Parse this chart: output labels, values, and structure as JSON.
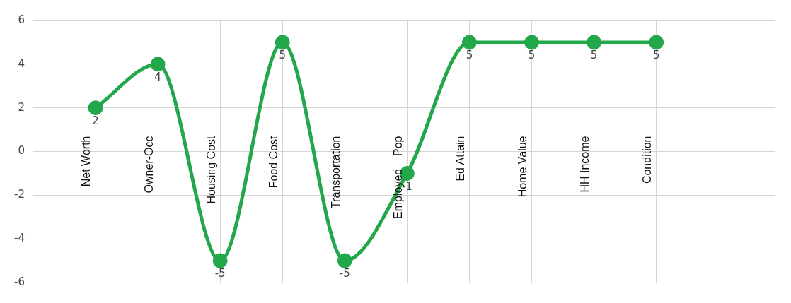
{
  "chart_data": {
    "type": "line",
    "categories": [
      "Net Worth",
      "Owner-Occ",
      "Housing Cost",
      "Food Cost",
      "Transportation",
      "Employed    Pop",
      "Ed Attain",
      "Home Value",
      "HH Income",
      "Condition"
    ],
    "series": [
      {
        "color": "#22a84a",
        "values": [
          2,
          4,
          -5,
          5,
          -5,
          -1,
          5,
          5,
          5,
          5
        ]
      }
    ],
    "ylim": [
      -6,
      6
    ],
    "yticks": [
      -6,
      -4,
      -2,
      0,
      2,
      4,
      6
    ],
    "grid": true,
    "data_labels": true,
    "marker": "circle",
    "line_style": "solid",
    "legend": false
  }
}
